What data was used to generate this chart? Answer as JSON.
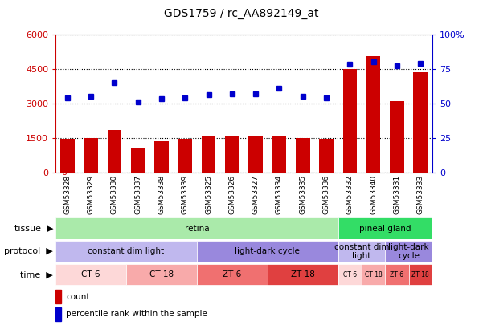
{
  "title": "GDS1759 / rc_AA892149_at",
  "samples": [
    "GSM53328",
    "GSM53329",
    "GSM53330",
    "GSM53337",
    "GSM53338",
    "GSM53339",
    "GSM53325",
    "GSM53326",
    "GSM53327",
    "GSM53334",
    "GSM53335",
    "GSM53336",
    "GSM53332",
    "GSM53340",
    "GSM53331",
    "GSM53333"
  ],
  "counts": [
    1440,
    1470,
    1820,
    1050,
    1330,
    1460,
    1570,
    1540,
    1560,
    1600,
    1470,
    1440,
    4500,
    5050,
    3100,
    4350
  ],
  "percentiles": [
    54,
    55,
    65,
    51,
    53,
    54,
    56,
    57,
    57,
    61,
    55,
    54,
    78,
    80,
    77,
    79
  ],
  "ylim_left": [
    0,
    6000
  ],
  "ylim_right": [
    0,
    100
  ],
  "yticks_left": [
    0,
    1500,
    3000,
    4500,
    6000
  ],
  "yticks_right": [
    0,
    25,
    50,
    75,
    100
  ],
  "bar_color": "#cc0000",
  "dot_color": "#0000cc",
  "tissue_groups": [
    {
      "label": "retina",
      "start": 0,
      "end": 12,
      "color": "#aaeaaa"
    },
    {
      "label": "pineal gland",
      "start": 12,
      "end": 16,
      "color": "#33dd66"
    }
  ],
  "protocol_groups": [
    {
      "label": "constant dim light",
      "start": 0,
      "end": 6,
      "color": "#c0b8ee"
    },
    {
      "label": "light-dark cycle",
      "start": 6,
      "end": 12,
      "color": "#9988dd"
    },
    {
      "label": "constant dim\nlight",
      "start": 12,
      "end": 14,
      "color": "#c0b8ee"
    },
    {
      "label": "light-dark\ncycle",
      "start": 14,
      "end": 16,
      "color": "#9988dd"
    }
  ],
  "time_groups": [
    {
      "label": "CT 6",
      "start": 0,
      "end": 3,
      "color": "#fdd8d8"
    },
    {
      "label": "CT 18",
      "start": 3,
      "end": 6,
      "color": "#f8aaaa"
    },
    {
      "label": "ZT 6",
      "start": 6,
      "end": 9,
      "color": "#f07070"
    },
    {
      "label": "ZT 18",
      "start": 9,
      "end": 12,
      "color": "#e04040"
    },
    {
      "label": "CT 6",
      "start": 12,
      "end": 13,
      "color": "#fdd8d8"
    },
    {
      "label": "CT 18",
      "start": 13,
      "end": 14,
      "color": "#f8aaaa"
    },
    {
      "label": "ZT 6",
      "start": 14,
      "end": 15,
      "color": "#f07070"
    },
    {
      "label": "ZT 18",
      "start": 15,
      "end": 16,
      "color": "#e04040"
    }
  ],
  "legend_items": [
    {
      "label": "count",
      "color": "#cc0000"
    },
    {
      "label": "percentile rank within the sample",
      "color": "#0000cc"
    }
  ],
  "background_color": "#ffffff",
  "grid_color": "#555555",
  "box_color": "#888888"
}
